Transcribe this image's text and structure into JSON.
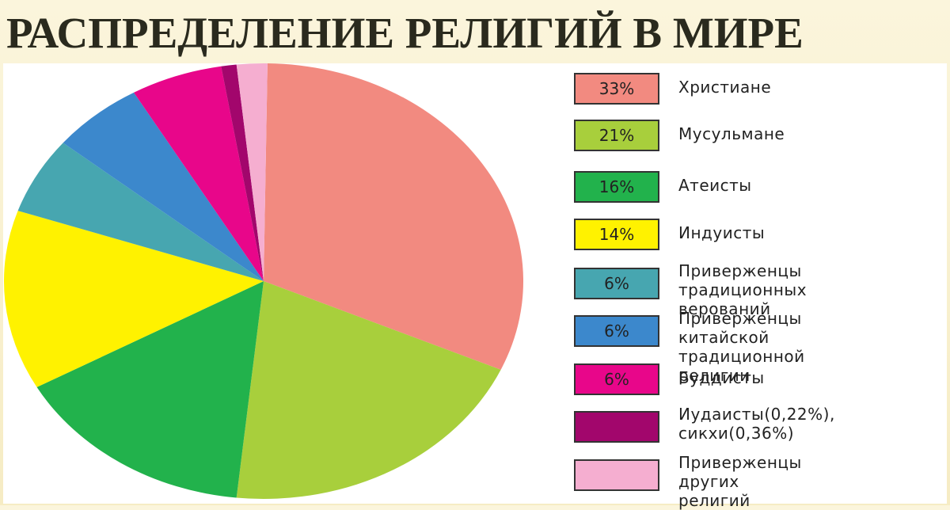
{
  "chart_data": {
    "type": "pie",
    "title": "РАСПРЕДЕЛЕНИЕ РЕЛИГИЙ В МИРЕ",
    "categories": [
      "Христиане",
      "Мусульмане",
      "Атеисты",
      "Индуисты",
      "Приверженцы\nтрадиционных верований",
      "Приверженцы китайской\nтрадиционной религии",
      "Буддисты",
      "Иудаисты(0,22%),\nсикхи(0,36%)",
      "Приверженцы других\nрелигий"
    ],
    "values": [
      33,
      21,
      16,
      14,
      6,
      6,
      6,
      1,
      2
    ],
    "value_labels": [
      "33%",
      "21%",
      "16%",
      "14%",
      "6%",
      "6%",
      "6%",
      null,
      null
    ],
    "colors": [
      "#f28a80",
      "#a8cf3c",
      "#22b24c",
      "#fff200",
      "#47a6b0",
      "#3c88cc",
      "#e8068a",
      "#a2066c",
      "#f5aed0"
    ]
  }
}
